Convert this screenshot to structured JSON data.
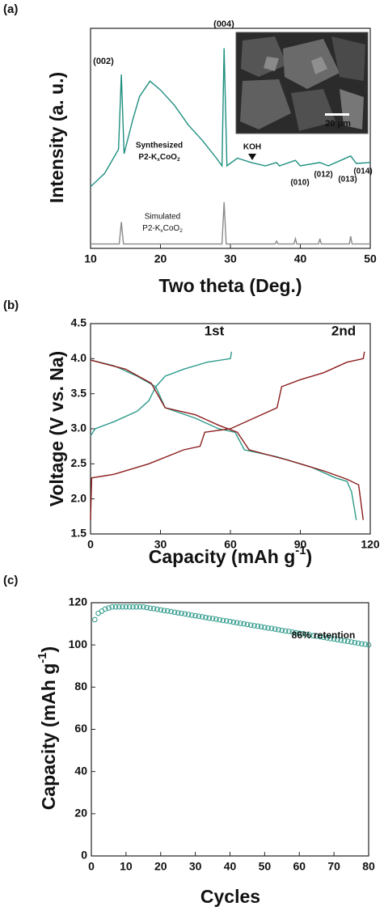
{
  "chart_data": [
    {
      "type": "line",
      "panel_label": "(a)",
      "x_label": "Two theta (Deg.)",
      "y_label": "Intensity (a. u.)",
      "xlim": [
        10,
        50
      ],
      "ylim": [
        0,
        100
      ],
      "xticks": [
        10,
        20,
        30,
        40,
        50
      ],
      "series": [
        {
          "name": "Synthesized",
          "color": "#1f8f7f",
          "x": [
            10,
            12,
            14,
            14.4,
            14.8,
            16,
            17,
            18.5,
            20,
            22,
            24,
            26,
            28,
            28.8,
            29.1,
            29.5,
            31,
            33,
            35,
            36.6,
            37,
            39.3,
            40,
            42.8,
            44,
            47.2,
            48,
            50
          ],
          "values": [
            28,
            34,
            45,
            79,
            43,
            58,
            69,
            76,
            72,
            65,
            56,
            49,
            41,
            37.5,
            91,
            37.5,
            41,
            39,
            37.5,
            39,
            37.5,
            40,
            37.5,
            39,
            37.5,
            42,
            38.6,
            39
          ]
        },
        {
          "name": "Simulated",
          "color": "#8a8a8a",
          "x": [
            10,
            14.1,
            14.4,
            14.7,
            28.8,
            29.1,
            29.4,
            36.4,
            36.6,
            36.8,
            39.1,
            39.3,
            39.5,
            42.6,
            42.8,
            43.0,
            47.0,
            47.2,
            47.4,
            50
          ],
          "values": [
            2,
            2,
            12,
            2,
            2,
            21,
            2,
            2,
            3.3,
            2,
            2,
            4.4,
            2,
            2,
            4.4,
            2,
            2,
            5.5,
            2,
            2
          ]
        }
      ],
      "annotations": [
        "(002)",
        "(004)",
        "KOH",
        "(010)",
        "(012)",
        "(013)",
        "(014)",
        "Synthesized",
        [
          "P2-K",
          "x",
          "CoO",
          "2"
        ],
        "Simulated",
        [
          "P2-K",
          "x",
          "CoO",
          "2"
        ],
        "20 μm"
      ]
    },
    {
      "type": "line",
      "panel_label": "(b)",
      "x_label": [
        "Capacity (mAh g",
        "-1",
        ")"
      ],
      "y_label": "Voltage (V vs. Na)",
      "xlim": [
        0,
        120
      ],
      "ylim": [
        1.5,
        4.5
      ],
      "xticks": [
        0,
        30,
        60,
        90,
        120
      ],
      "yticks": [
        1.5,
        {
          "value": 2,
          "label": "2.0"
        },
        2.5,
        {
          "value": 3,
          "label": "3.0"
        },
        3.5,
        {
          "value": 4,
          "label": "4.0"
        },
        4.5
      ],
      "series": [
        {
          "name": "1st",
          "color": "#2e9a8a",
          "x": [
            0,
            2,
            10,
            20,
            25,
            28,
            32,
            40,
            50,
            60,
            60.5,
            null,
            0,
            10,
            20,
            28,
            32,
            45,
            55,
            62,
            66,
            80,
            95,
            105,
            110,
            112,
            114
          ],
          "values": [
            2.9,
            3.0,
            3.1,
            3.25,
            3.4,
            3.6,
            3.75,
            3.85,
            3.95,
            4.0,
            4.1,
            null,
            3.98,
            3.9,
            3.75,
            3.6,
            3.3,
            3.15,
            3.0,
            2.95,
            2.7,
            2.6,
            2.45,
            2.3,
            2.25,
            2.1,
            1.7
          ]
        },
        {
          "name": "2nd",
          "color": "#8b1c1c",
          "x": [
            0,
            0.5,
            10,
            25,
            40,
            47,
            49,
            60,
            70,
            80,
            82,
            90,
            100,
            110,
            117,
            117.5,
            null,
            0,
            15,
            26,
            32,
            45,
            55,
            63,
            68,
            85,
            100,
            110,
            115,
            116,
            117
          ],
          "values": [
            1.7,
            2.3,
            2.35,
            2.5,
            2.7,
            2.75,
            2.95,
            3.0,
            3.15,
            3.3,
            3.6,
            3.7,
            3.8,
            3.95,
            4.0,
            4.1,
            null,
            3.98,
            3.85,
            3.65,
            3.3,
            3.2,
            3.05,
            2.95,
            2.7,
            2.55,
            2.4,
            2.28,
            2.2,
            1.95,
            1.7
          ]
        }
      ]
    },
    {
      "type": "scatter",
      "panel_label": "(c)",
      "x_label": "Cycles",
      "y_label": [
        "Capacity (mAh g",
        "-1",
        ")"
      ],
      "xlim": [
        0,
        80
      ],
      "ylim": [
        0,
        120
      ],
      "xticks": [
        0,
        10,
        20,
        30,
        40,
        50,
        60,
        70,
        80
      ],
      "yticks": [
        0,
        20,
        40,
        60,
        80,
        100,
        120
      ],
      "color": "#2e9a8a",
      "x": [
        1,
        2,
        3,
        4,
        5,
        6,
        7,
        8,
        9,
        10,
        11,
        12,
        13,
        14,
        15,
        16,
        17,
        18,
        19,
        20,
        21,
        22,
        23,
        24,
        25,
        26,
        27,
        28,
        29,
        30,
        31,
        32,
        33,
        34,
        35,
        36,
        37,
        38,
        39,
        40,
        41,
        42,
        43,
        44,
        45,
        46,
        47,
        48,
        49,
        50,
        51,
        52,
        53,
        54,
        55,
        56,
        57,
        58,
        59,
        60,
        61,
        62,
        63,
        64,
        65,
        66,
        67,
        68,
        69,
        70,
        71,
        72,
        73,
        74,
        75,
        76,
        77,
        78,
        79,
        80
      ],
      "values": [
        112,
        115,
        116,
        117,
        117.5,
        118,
        118,
        118,
        118,
        118,
        118,
        118,
        118,
        118,
        118,
        117.7,
        117.4,
        117.2,
        116.9,
        116.6,
        116.3,
        116.1,
        115.8,
        115.5,
        115.2,
        115.0,
        114.7,
        114.4,
        114.1,
        113.8,
        113.6,
        113.3,
        113.0,
        112.7,
        112.5,
        112.2,
        111.9,
        111.6,
        111.4,
        111.1,
        110.8,
        110.5,
        110.2,
        110.0,
        109.7,
        109.4,
        109.1,
        108.9,
        108.6,
        108.3,
        108.0,
        107.8,
        107.5,
        107.2,
        106.9,
        106.6,
        106.4,
        106.1,
        105.8,
        105.5,
        105.3,
        105.0,
        104.7,
        104.4,
        104.2,
        103.9,
        103.6,
        103.3,
        103.0,
        102.8,
        102.5,
        102.2,
        101.9,
        101.7,
        101.4,
        101.1,
        100.8,
        100.5,
        100.3,
        100.0
      ],
      "annotations": [
        "86% retention"
      ]
    }
  ]
}
